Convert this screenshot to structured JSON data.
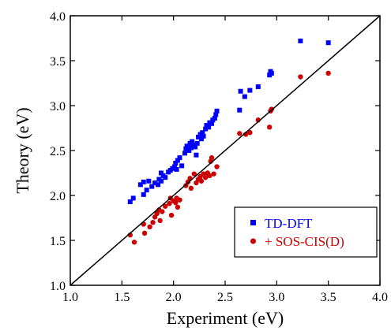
{
  "chart_data": {
    "type": "scatter",
    "title": "",
    "xlabel": "Experiment (eV)",
    "ylabel": "Theory (eV)",
    "xlim": [
      1.0,
      4.0
    ],
    "ylim": [
      1.0,
      4.0
    ],
    "xticks": [
      "1.0",
      "1.5",
      "2.0",
      "2.5",
      "3.0",
      "3.5",
      "4.0"
    ],
    "yticks": [
      "1.0",
      "1.5",
      "2.0",
      "2.5",
      "3.0",
      "3.5",
      "4.0"
    ],
    "grid": false,
    "legend_position": "bottom-right",
    "reference_line": "y = x",
    "series": [
      {
        "name": "TD-DFT",
        "marker": "square",
        "color": "#0000ff",
        "points": [
          [
            1.58,
            1.93
          ],
          [
            1.61,
            1.97
          ],
          [
            1.71,
            2.01
          ],
          [
            1.68,
            2.12
          ],
          [
            1.71,
            2.15
          ],
          [
            1.76,
            2.16
          ],
          [
            1.74,
            2.06
          ],
          [
            1.79,
            2.1
          ],
          [
            1.82,
            2.14
          ],
          [
            1.85,
            2.12
          ],
          [
            1.86,
            2.18
          ],
          [
            1.88,
            2.16
          ],
          [
            1.9,
            2.22
          ],
          [
            1.88,
            2.25
          ],
          [
            1.92,
            2.2
          ],
          [
            1.95,
            2.26
          ],
          [
            1.97,
            2.28
          ],
          [
            1.99,
            2.3
          ],
          [
            2.01,
            2.32
          ],
          [
            2.02,
            2.36
          ],
          [
            2.04,
            2.39
          ],
          [
            2.06,
            2.42
          ],
          [
            2.03,
            2.29
          ],
          [
            2.08,
            2.33
          ],
          [
            2.11,
            2.47
          ],
          [
            2.12,
            2.52
          ],
          [
            2.13,
            2.55
          ],
          [
            2.15,
            2.5
          ],
          [
            2.17,
            2.53
          ],
          [
            2.16,
            2.58
          ],
          [
            2.18,
            2.6
          ],
          [
            2.19,
            2.56
          ],
          [
            2.21,
            2.54
          ],
          [
            2.22,
            2.45
          ],
          [
            2.23,
            2.58
          ],
          [
            2.24,
            2.65
          ],
          [
            2.26,
            2.68
          ],
          [
            2.27,
            2.63
          ],
          [
            2.28,
            2.7
          ],
          [
            2.29,
            2.66
          ],
          [
            2.31,
            2.74
          ],
          [
            2.32,
            2.78
          ],
          [
            2.34,
            2.76
          ],
          [
            2.35,
            2.81
          ],
          [
            2.37,
            2.8
          ],
          [
            2.38,
            2.84
          ],
          [
            2.4,
            2.86
          ],
          [
            2.41,
            2.9
          ],
          [
            2.42,
            2.94
          ],
          [
            2.64,
            2.95
          ],
          [
            2.65,
            3.16
          ],
          [
            2.69,
            3.1
          ],
          [
            2.74,
            3.17
          ],
          [
            2.82,
            3.21
          ],
          [
            2.93,
            3.34
          ],
          [
            2.94,
            3.38
          ],
          [
            2.95,
            3.36
          ],
          [
            3.23,
            3.72
          ],
          [
            3.5,
            3.7
          ]
        ]
      },
      {
        "name": "+ SOS-CIS(D)",
        "marker": "circle",
        "color": "#cc0000",
        "points": [
          [
            1.58,
            1.56
          ],
          [
            1.62,
            1.48
          ],
          [
            1.71,
            1.68
          ],
          [
            1.72,
            1.58
          ],
          [
            1.77,
            1.65
          ],
          [
            1.8,
            1.7
          ],
          [
            1.82,
            1.76
          ],
          [
            1.84,
            1.8
          ],
          [
            1.86,
            1.84
          ],
          [
            1.87,
            1.72
          ],
          [
            1.89,
            1.82
          ],
          [
            1.92,
            1.88
          ],
          [
            1.96,
            1.91
          ],
          [
            1.97,
            1.97
          ],
          [
            1.98,
            1.78
          ],
          [
            2.0,
            1.94
          ],
          [
            2.02,
            1.92
          ],
          [
            2.03,
            1.97
          ],
          [
            2.04,
            1.87
          ],
          [
            2.06,
            1.95
          ],
          [
            2.12,
            2.11
          ],
          [
            2.14,
            2.15
          ],
          [
            2.16,
            2.19
          ],
          [
            2.17,
            2.08
          ],
          [
            2.2,
            2.24
          ],
          [
            2.22,
            2.14
          ],
          [
            2.24,
            2.18
          ],
          [
            2.26,
            2.21
          ],
          [
            2.27,
            2.16
          ],
          [
            2.29,
            2.24
          ],
          [
            2.31,
            2.2
          ],
          [
            2.33,
            2.25
          ],
          [
            2.35,
            2.22
          ],
          [
            2.36,
            2.38
          ],
          [
            2.37,
            2.42
          ],
          [
            2.39,
            2.24
          ],
          [
            2.42,
            2.32
          ],
          [
            2.64,
            2.69
          ],
          [
            2.7,
            2.68
          ],
          [
            2.74,
            2.7
          ],
          [
            2.82,
            2.84
          ],
          [
            2.93,
            2.76
          ],
          [
            2.94,
            2.94
          ],
          [
            2.95,
            2.96
          ],
          [
            3.23,
            3.32
          ],
          [
            3.5,
            3.36
          ]
        ]
      }
    ]
  }
}
